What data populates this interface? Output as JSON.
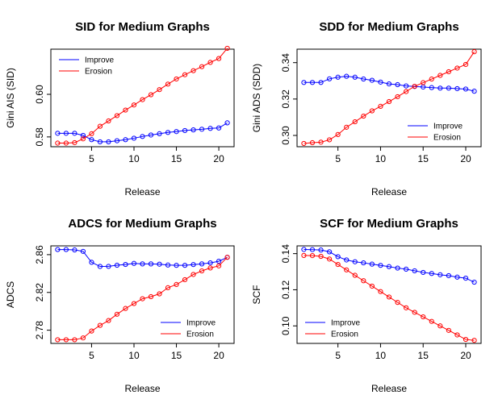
{
  "colors": {
    "improve": "#0000ff",
    "erosion": "#ff0000",
    "axis": "#000000"
  },
  "chart_data": [
    {
      "type": "line",
      "title": "SID for Medium Graphs",
      "xlabel": "Release",
      "ylabel": "Gini AIS (SID)",
      "x": [
        1,
        2,
        3,
        4,
        5,
        6,
        7,
        8,
        9,
        10,
        11,
        12,
        13,
        14,
        15,
        16,
        17,
        18,
        19,
        20,
        21
      ],
      "xlim": [
        0.2,
        21.8
      ],
      "ylim": [
        0.5754,
        0.6212
      ],
      "xticks": [
        5,
        10,
        15,
        20
      ],
      "xtick_labels": [
        "5",
        "10",
        "15",
        "20"
      ],
      "yticks": [
        0.58,
        0.6
      ],
      "ytick_labels": [
        "0.58",
        "0.60"
      ],
      "legend": "top-left",
      "series": [
        {
          "name": "Improve",
          "color": "#0000ff",
          "values": [
            0.5817,
            0.5817,
            0.5817,
            0.5807,
            0.5787,
            0.5777,
            0.5777,
            0.5782,
            0.5787,
            0.5794,
            0.5802,
            0.5809,
            0.5815,
            0.5821,
            0.5825,
            0.583,
            0.5833,
            0.5836,
            0.584,
            0.5842,
            0.5866
          ]
        },
        {
          "name": "Erosion",
          "color": "#ff0000",
          "values": [
            0.5771,
            0.5771,
            0.5773,
            0.5791,
            0.5815,
            0.585,
            0.5875,
            0.59,
            0.5926,
            0.595,
            0.5975,
            0.5998,
            0.6022,
            0.6048,
            0.6072,
            0.6092,
            0.6111,
            0.613,
            0.615,
            0.6168,
            0.6216
          ]
        }
      ]
    },
    {
      "type": "line",
      "title": "SDD for Medium Graphs",
      "xlabel": "Release",
      "ylabel": "Gini ADS (SDD)",
      "x": [
        1,
        2,
        3,
        4,
        5,
        6,
        7,
        8,
        9,
        10,
        11,
        12,
        13,
        14,
        15,
        16,
        17,
        18,
        19,
        20,
        21
      ],
      "xlim": [
        0.2,
        21.8
      ],
      "ylim": [
        0.2938,
        0.3474
      ],
      "xticks": [
        5,
        10,
        15,
        20
      ],
      "xtick_labels": [
        "5",
        "10",
        "15",
        "20"
      ],
      "yticks": [
        0.3,
        0.32,
        0.34
      ],
      "ytick_labels": [
        "0.30",
        "0.32",
        "0.34"
      ],
      "legend": "bottom-right",
      "series": [
        {
          "name": "Improve",
          "color": "#0000ff",
          "values": [
            0.3291,
            0.3291,
            0.3291,
            0.3311,
            0.332,
            0.3325,
            0.332,
            0.331,
            0.3303,
            0.3293,
            0.3283,
            0.3279,
            0.3272,
            0.3269,
            0.3266,
            0.3263,
            0.326,
            0.326,
            0.3257,
            0.3255,
            0.3243
          ]
        },
        {
          "name": "Erosion",
          "color": "#ff0000",
          "values": [
            0.2956,
            0.296,
            0.2963,
            0.2976,
            0.3005,
            0.3045,
            0.3075,
            0.3106,
            0.3135,
            0.316,
            0.3186,
            0.3213,
            0.3241,
            0.327,
            0.329,
            0.331,
            0.333,
            0.335,
            0.337,
            0.339,
            0.346
          ]
        }
      ]
    },
    {
      "type": "line",
      "title": "ADCS for Medium Graphs",
      "xlabel": "Release",
      "ylabel": "ADCS",
      "x": [
        1,
        2,
        3,
        4,
        5,
        6,
        7,
        8,
        9,
        10,
        11,
        12,
        13,
        14,
        15,
        16,
        17,
        18,
        19,
        20,
        21
      ],
      "xlim": [
        0.2,
        21.8
      ],
      "ylim": [
        2.766,
        2.8693
      ],
      "xticks": [
        5,
        10,
        15,
        20
      ],
      "xtick_labels": [
        "5",
        "10",
        "15",
        "20"
      ],
      "yticks": [
        2.78,
        2.82,
        2.86
      ],
      "ytick_labels": [
        "2.78",
        "2.82",
        "2.86"
      ],
      "legend": "bottom-right",
      "series": [
        {
          "name": "Improve",
          "color": "#0000ff",
          "values": [
            2.8654,
            2.8654,
            2.865,
            2.8635,
            2.8519,
            2.8475,
            2.8476,
            2.8488,
            2.8496,
            2.8507,
            2.8502,
            2.8502,
            2.8499,
            2.849,
            2.8487,
            2.8487,
            2.8495,
            2.8502,
            2.8513,
            2.853,
            2.8572
          ]
        },
        {
          "name": "Erosion",
          "color": "#ff0000",
          "values": [
            2.7699,
            2.7699,
            2.7699,
            2.7718,
            2.7791,
            2.7851,
            2.7902,
            2.7969,
            2.803,
            2.8082,
            2.8133,
            2.8155,
            2.8185,
            2.825,
            2.8284,
            2.8335,
            2.839,
            2.8428,
            2.8459,
            2.8481,
            2.8572
          ]
        }
      ]
    },
    {
      "type": "line",
      "title": "SCF for Medium Graphs",
      "xlabel": "Release",
      "ylabel": "SCF",
      "x": [
        1,
        2,
        3,
        4,
        5,
        6,
        7,
        8,
        9,
        10,
        11,
        12,
        13,
        14,
        15,
        16,
        17,
        18,
        19,
        20,
        21
      ],
      "xlim": [
        0.2,
        21.8
      ],
      "ylim": [
        0.0903,
        0.1443
      ],
      "xticks": [
        5,
        10,
        15,
        20
      ],
      "xtick_labels": [
        "5",
        "10",
        "15",
        "20"
      ],
      "yticks": [
        0.1,
        0.12,
        0.14
      ],
      "ytick_labels": [
        "0.10",
        "0.12",
        "0.14"
      ],
      "legend": "bottom-left",
      "series": [
        {
          "name": "Improve",
          "color": "#0000ff",
          "values": [
            0.1423,
            0.1422,
            0.142,
            0.141,
            0.1383,
            0.1365,
            0.1355,
            0.1349,
            0.1342,
            0.1335,
            0.1328,
            0.132,
            0.1314,
            0.1305,
            0.1296,
            0.129,
            0.1283,
            0.1278,
            0.127,
            0.1264,
            0.1242
          ]
        },
        {
          "name": "Erosion",
          "color": "#ff0000",
          "values": [
            0.139,
            0.1389,
            0.1385,
            0.137,
            0.134,
            0.131,
            0.128,
            0.125,
            0.122,
            0.119,
            0.116,
            0.113,
            0.11,
            0.1075,
            0.105,
            0.1025,
            0.1,
            0.0975,
            0.095,
            0.0925,
            0.092
          ]
        }
      ]
    }
  ]
}
